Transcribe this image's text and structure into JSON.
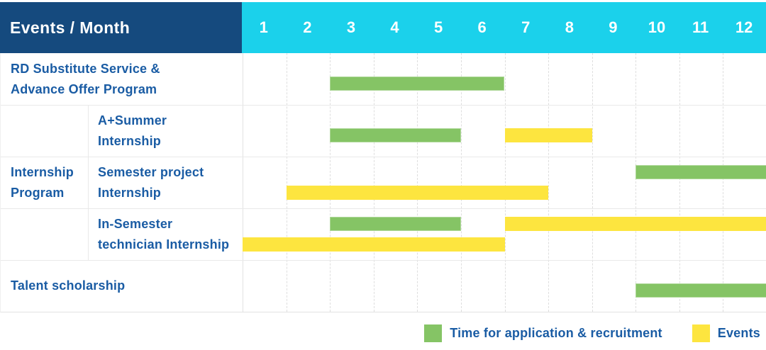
{
  "title_cell": "Events / Month",
  "colors": {
    "header_bg": "#154A7E",
    "months_bg": "#1BD1EB",
    "label_text": "#1A5CA4",
    "green": "#85C465",
    "yellow": "#FDE53F"
  },
  "chart_data": {
    "type": "table",
    "subtype": "gantt",
    "title": "Events / Month",
    "x_label": "Month",
    "x_ticks": [
      "1",
      "2",
      "3",
      "4",
      "5",
      "6",
      "7",
      "8",
      "9",
      "10",
      "11",
      "12"
    ],
    "x_range_months": [
      1,
      12
    ],
    "grid": true,
    "legend_position": "bottom-right",
    "legend": [
      {
        "series": "application_recruitment",
        "label": "Time for application & recruitment",
        "color": "#85C465"
      },
      {
        "series": "events",
        "label": "Events",
        "color": "#FDE53F"
      }
    ],
    "rows": [
      {
        "id": "rd-substitute",
        "label": "RD Substitute Service &\nAdvance Offer Program",
        "group": "",
        "lines": [
          [
            {
              "series": "application_recruitment",
              "start": 3,
              "end": 6
            }
          ]
        ]
      },
      {
        "id": "a-plus-summer-internship",
        "label": "A+Summer\nInternship",
        "group": "Internship\nProgram",
        "lines": [
          [
            {
              "series": "application_recruitment",
              "start": 3,
              "end": 5
            },
            {
              "series": "events",
              "start": 7,
              "end": 8
            }
          ]
        ]
      },
      {
        "id": "semester-project-internship",
        "label": "Semester project\nInternship",
        "group": "Internship\nProgram",
        "lines": [
          [
            {
              "series": "application_recruitment",
              "start": 10,
              "end": 12
            }
          ],
          [
            {
              "series": "events",
              "start": 2,
              "end": 7
            }
          ]
        ]
      },
      {
        "id": "in-semester-technician-internship",
        "label": "In-Semester\ntechnician Internship",
        "group": "Internship\nProgram",
        "lines": [
          [
            {
              "series": "application_recruitment",
              "start": 3,
              "end": 5
            },
            {
              "series": "events",
              "start": 7,
              "end": 12
            }
          ],
          [
            {
              "series": "events",
              "start": 1,
              "end": 6
            }
          ]
        ]
      },
      {
        "id": "talent-scholarship",
        "label": "Talent scholarship",
        "group": "",
        "lines": [
          [
            {
              "series": "application_recruitment",
              "start": 10,
              "end": 12
            }
          ]
        ]
      }
    ]
  }
}
